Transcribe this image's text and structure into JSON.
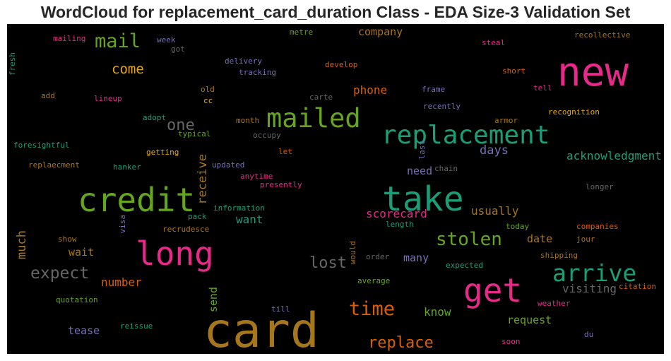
{
  "title": "WordCloud for replacement_card_duration Class - EDA Size-3 Validation Set",
  "words": [
    {
      "text": "card",
      "color": "#a6761d"
    },
    {
      "text": "new",
      "color": "#e7298a"
    },
    {
      "text": "take",
      "color": "#1b9e77"
    },
    {
      "text": "credit",
      "color": "#66a61e"
    },
    {
      "text": "long",
      "color": "#e7298a"
    },
    {
      "text": "replacement",
      "color": "#1b9e77"
    },
    {
      "text": "mailed",
      "color": "#66a61e"
    },
    {
      "text": "get",
      "color": "#e7298a"
    },
    {
      "text": "arrive",
      "color": "#1b9e77"
    },
    {
      "text": "mail",
      "color": "#66a61e"
    },
    {
      "text": "time",
      "color": "#d95f02"
    },
    {
      "text": "stolen",
      "color": "#66a61e"
    },
    {
      "text": "expect",
      "color": "#666666"
    },
    {
      "text": "replace",
      "color": "#d95f02"
    },
    {
      "text": "one",
      "color": "#666666"
    },
    {
      "text": "lost",
      "color": "#666666"
    },
    {
      "text": "come",
      "color": "#e6ab02"
    },
    {
      "text": "receive",
      "color": "#a6761d"
    },
    {
      "text": "much",
      "color": "#a6761d"
    },
    {
      "text": "days",
      "color": "#7570b3"
    },
    {
      "text": "usually",
      "color": "#a6761d"
    },
    {
      "text": "scorecard",
      "color": "#e7298a"
    },
    {
      "text": "phone",
      "color": "#d95f02"
    },
    {
      "text": "company",
      "color": "#a6761d"
    },
    {
      "text": "acknowledgment",
      "color": "#1b9e77"
    },
    {
      "text": "visiting",
      "color": "#666666"
    },
    {
      "text": "date",
      "color": "#a6761d"
    },
    {
      "text": "know",
      "color": "#66a61e"
    },
    {
      "text": "number",
      "color": "#d95f02"
    },
    {
      "text": "wait",
      "color": "#a6761d"
    },
    {
      "text": "send",
      "color": "#66a61e"
    },
    {
      "text": "want",
      "color": "#1b9e77"
    },
    {
      "text": "many",
      "color": "#7570b3"
    },
    {
      "text": "need",
      "color": "#7570b3"
    },
    {
      "text": "request",
      "color": "#66a61e"
    },
    {
      "text": "tease",
      "color": "#7570b3"
    },
    {
      "text": "mailing",
      "color": "#e7298a"
    },
    {
      "text": "week",
      "color": "#7570b3"
    },
    {
      "text": "got",
      "color": "#666666"
    },
    {
      "text": "metre",
      "color": "#66a61e"
    },
    {
      "text": "delivery",
      "color": "#7570b3"
    },
    {
      "text": "tracking",
      "color": "#7570b3"
    },
    {
      "text": "develop",
      "color": "#d95f02"
    },
    {
      "text": "steal",
      "color": "#e7298a"
    },
    {
      "text": "recollective",
      "color": "#a6761d"
    },
    {
      "text": "short",
      "color": "#d95f02"
    },
    {
      "text": "fresh",
      "color": "#1b9e77"
    },
    {
      "text": "add",
      "color": "#a6761d"
    },
    {
      "text": "lineup",
      "color": "#e7298a"
    },
    {
      "text": "old",
      "color": "#a6761d"
    },
    {
      "text": "cc",
      "color": "#e6ab02"
    },
    {
      "text": "carte",
      "color": "#666666"
    },
    {
      "text": "frame",
      "color": "#7570b3"
    },
    {
      "text": "recently",
      "color": "#7570b3"
    },
    {
      "text": "tell",
      "color": "#e7298a"
    },
    {
      "text": "recognition",
      "color": "#e6ab02"
    },
    {
      "text": "armor",
      "color": "#a6761d"
    },
    {
      "text": "month",
      "color": "#a6761d"
    },
    {
      "text": "adopt",
      "color": "#1b9e77"
    },
    {
      "text": "typical",
      "color": "#66a61e"
    },
    {
      "text": "occupy",
      "color": "#666666"
    },
    {
      "text": "foresightful",
      "color": "#1b9e77"
    },
    {
      "text": "getting",
      "color": "#e6ab02"
    },
    {
      "text": "let",
      "color": "#d95f02"
    },
    {
      "text": "last",
      "color": "#7570b3"
    },
    {
      "text": "chain",
      "color": "#666666"
    },
    {
      "text": "replaecment",
      "color": "#a6761d"
    },
    {
      "text": "hanker",
      "color": "#1b9e77"
    },
    {
      "text": "updated",
      "color": "#7570b3"
    },
    {
      "text": "anytime",
      "color": "#e7298a"
    },
    {
      "text": "presently",
      "color": "#e7298a"
    },
    {
      "text": "longer",
      "color": "#666666"
    },
    {
      "text": "pack",
      "color": "#1b9e77"
    },
    {
      "text": "information",
      "color": "#1b9e77"
    },
    {
      "text": "visa",
      "color": "#7570b3"
    },
    {
      "text": "recrudesce",
      "color": "#a6761d"
    },
    {
      "text": "length",
      "color": "#1b9e77"
    },
    {
      "text": "today",
      "color": "#66a61e"
    },
    {
      "text": "companies",
      "color": "#d95f02"
    },
    {
      "text": "show",
      "color": "#a6761d"
    },
    {
      "text": "jour",
      "color": "#a6761d"
    },
    {
      "text": "would",
      "color": "#a6761d"
    },
    {
      "text": "order",
      "color": "#666666"
    },
    {
      "text": "shipping",
      "color": "#a6761d"
    },
    {
      "text": "expected",
      "color": "#1b9e77"
    },
    {
      "text": "average",
      "color": "#66a61e"
    },
    {
      "text": "citation",
      "color": "#d95f02"
    },
    {
      "text": "quotation",
      "color": "#66a61e"
    },
    {
      "text": "weather",
      "color": "#e7298a"
    },
    {
      "text": "till",
      "color": "#7570b3"
    },
    {
      "text": "reissue",
      "color": "#1b9e77"
    },
    {
      "text": "du",
      "color": "#7570b3"
    },
    {
      "text": "soon",
      "color": "#e7298a"
    }
  ]
}
